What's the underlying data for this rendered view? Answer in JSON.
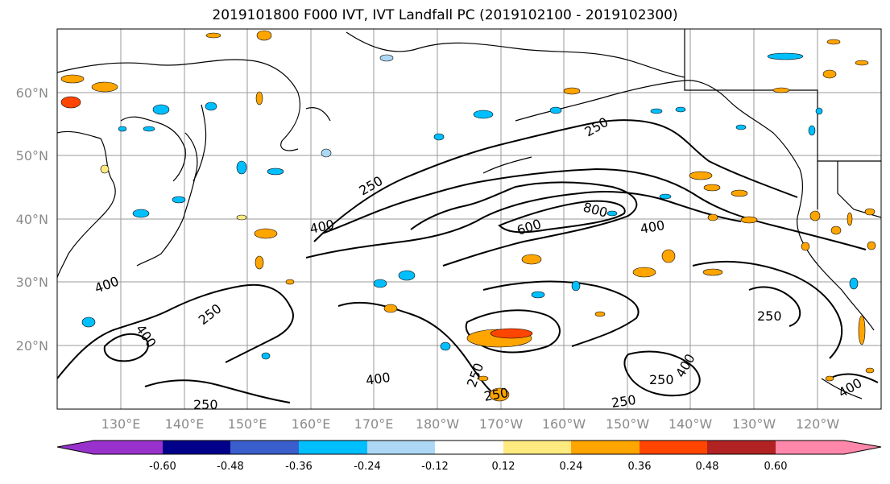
{
  "title": "2019101800 F000 IVT, IVT Landfall PC (2019102100 - 2019102300)",
  "lat_labels": [
    "60°N",
    "50°N",
    "40°N",
    "30°N",
    "20°N"
  ],
  "lon_labels": [
    "130°E",
    "140°E",
    "150°E",
    "160°E",
    "170°E",
    "180°W",
    "170°W",
    "160°W",
    "150°W",
    "140°W",
    "130°W",
    "120°W"
  ],
  "contour_labels": [
    "250",
    "250",
    "400",
    "600",
    "800",
    "400",
    "400",
    "250",
    "400",
    "250",
    "400",
    "250",
    "250",
    "250",
    "250",
    "400",
    "250",
    "400"
  ],
  "colorbar": {
    "tick_labels": [
      "-0.60",
      "-0.48",
      "-0.36",
      "-0.24",
      "-0.12",
      "0.12",
      "0.24",
      "0.36",
      "0.48",
      "0.60"
    ],
    "colors": [
      "#9932cc",
      "#00008b",
      "#3a5fcd",
      "#00bfff",
      "#add8f5",
      "#ffffff",
      "#ffea80",
      "#ffa500",
      "#ff4500",
      "#b22222",
      "#ff88aa"
    ]
  },
  "map_colors": {
    "positive_low": "#ffea80",
    "positive_mid": "#ffa500",
    "positive_high": "#ff4500",
    "negative_low": "#add8f5",
    "negative_mid": "#00bfff",
    "grid": "#9a9a9a"
  }
}
